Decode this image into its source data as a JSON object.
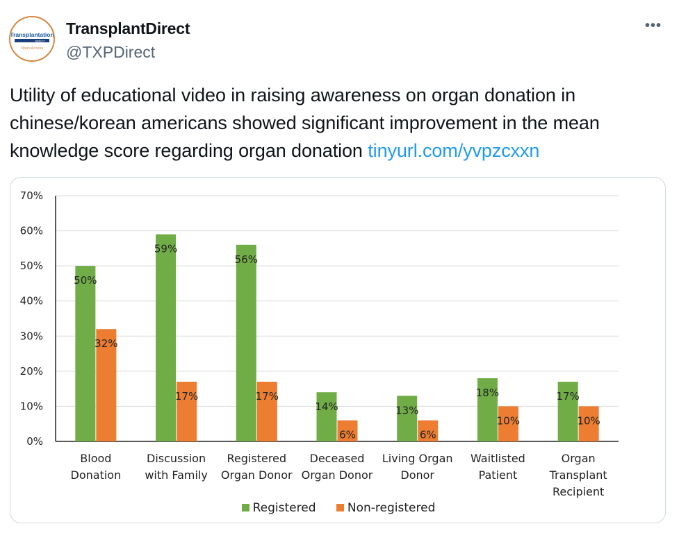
{
  "account": {
    "name": "TransplantDirect",
    "handle": "@TXPDirect",
    "avatar_text": "Transplantation",
    "avatar_sub": "DIRECT",
    "avatar_tag": "Open Access"
  },
  "more_label": "•••",
  "tweet": {
    "text": "Utility of educational video in raising awareness on organ donation in chinese/korean americans showed significant improvement in the mean knowledge score regarding organ donation ",
    "link": "tinyurl.com/yvpzcxxn"
  },
  "colors": {
    "registered": "#70ad47",
    "non_registered": "#ed7d31",
    "link": "#1d9bf0"
  },
  "chart_data": {
    "type": "bar",
    "categories": [
      [
        "Blood",
        "Donation"
      ],
      [
        "Discussion",
        "with Family"
      ],
      [
        "Registered",
        "Organ Donor"
      ],
      [
        "Deceased",
        "Organ Donor"
      ],
      [
        "Living Organ",
        "Donor"
      ],
      [
        "Waitlisted",
        "Patient"
      ],
      [
        "Organ",
        "Transplant",
        "Recipient"
      ]
    ],
    "series": [
      {
        "name": "Registered",
        "values": [
          50,
          59,
          56,
          14,
          13,
          18,
          17
        ]
      },
      {
        "name": "Non-registered",
        "values": [
          32,
          17,
          17,
          6,
          6,
          10,
          10
        ]
      }
    ],
    "yticks": [
      "0%",
      "10%",
      "20%",
      "30%",
      "40%",
      "50%",
      "60%",
      "70%"
    ],
    "ylim": [
      0,
      70
    ],
    "grid": true,
    "legend_position": "bottom"
  }
}
